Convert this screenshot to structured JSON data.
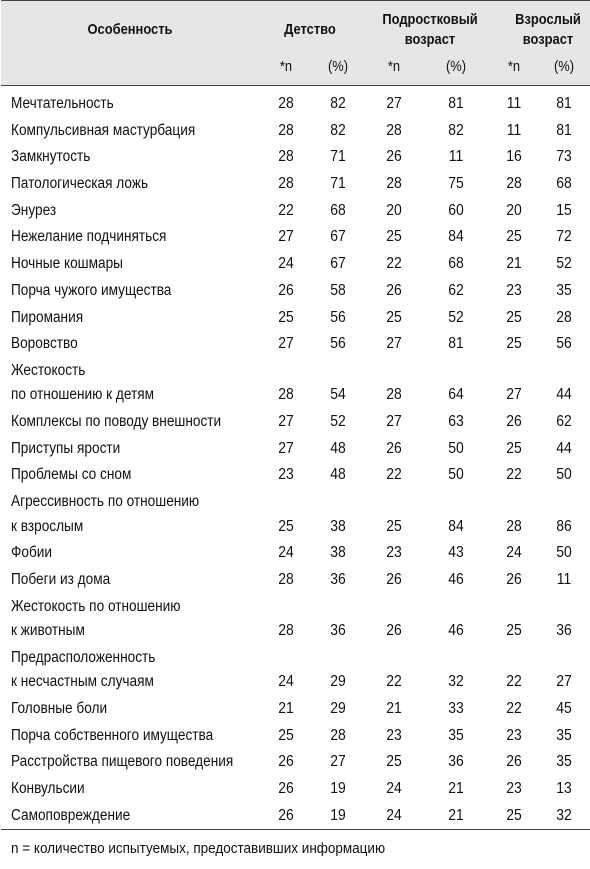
{
  "header": {
    "feature": "Особенность",
    "childhood": "Детство",
    "teen": "Подростковый возраст",
    "adult": "Взрослый возраст",
    "sub_n": "*n",
    "sub_pct": "(%)"
  },
  "rows": [
    {
      "feature": "Мечтательность",
      "values": [
        "28",
        "82",
        "27",
        "81",
        "11",
        "81"
      ]
    },
    {
      "feature": "Компульсивная мастурбация",
      "values": [
        "28",
        "82",
        "28",
        "82",
        "11",
        "81"
      ]
    },
    {
      "feature": "Замкнутость",
      "values": [
        "28",
        "71",
        "26",
        "11",
        "16",
        "73"
      ]
    },
    {
      "feature": "Патологическая ложь",
      "values": [
        "28",
        "71",
        "28",
        "75",
        "28",
        "68"
      ]
    },
    {
      "feature": "Энурез",
      "values": [
        "22",
        "68",
        "20",
        "60",
        "20",
        "15"
      ]
    },
    {
      "feature": "Нежелание подчиняться",
      "values": [
        "27",
        "67",
        "25",
        "84",
        "25",
        "72"
      ]
    },
    {
      "feature": "Ночные кошмары",
      "values": [
        "24",
        "67",
        "22",
        "68",
        "21",
        "52"
      ]
    },
    {
      "feature": "Порча чужого имущества",
      "values": [
        "26",
        "58",
        "26",
        "62",
        "23",
        "35"
      ]
    },
    {
      "feature": "Пиромания",
      "values": [
        "25",
        "56",
        "25",
        "52",
        "25",
        "28"
      ]
    },
    {
      "feature": "Воровство",
      "values": [
        "27",
        "56",
        "27",
        "81",
        "25",
        "56"
      ]
    },
    {
      "feature": "Жестокость\nпо отношению к детям",
      "values": [
        "28",
        "54",
        "28",
        "64",
        "27",
        "44"
      ]
    },
    {
      "feature": "Комплексы по поводу внешности",
      "values": [
        "27",
        "52",
        "27",
        "63",
        "26",
        "62"
      ]
    },
    {
      "feature": "Приступы ярости",
      "values": [
        "27",
        "48",
        "26",
        "50",
        "25",
        "44"
      ]
    },
    {
      "feature": "Проблемы со сном",
      "values": [
        "23",
        "48",
        "22",
        "50",
        "22",
        "50"
      ]
    },
    {
      "feature": "Агрессивность по отношению\nк взрослым",
      "values": [
        "25",
        "38",
        "25",
        "84",
        "28",
        "86"
      ]
    },
    {
      "feature": "Фобии",
      "values": [
        "24",
        "38",
        "23",
        "43",
        "24",
        "50"
      ]
    },
    {
      "feature": "Побеги из дома",
      "values": [
        "28",
        "36",
        "26",
        "46",
        "26",
        "11"
      ]
    },
    {
      "feature": "Жестокость по отношению\nк животным",
      "values": [
        "28",
        "36",
        "26",
        "46",
        "25",
        "36"
      ]
    },
    {
      "feature": "Предрасположенность\nк несчастным случаям",
      "values": [
        "24",
        "29",
        "22",
        "32",
        "22",
        "27"
      ]
    },
    {
      "feature": "Головные боли",
      "values": [
        "21",
        "29",
        "21",
        "33",
        "22",
        "45"
      ]
    },
    {
      "feature": "Порча собственного имущества",
      "values": [
        "25",
        "28",
        "23",
        "35",
        "23",
        "35"
      ]
    },
    {
      "feature": "Расстройства пищевого поведения",
      "values": [
        "26",
        "27",
        "25",
        "36",
        "26",
        "35"
      ]
    },
    {
      "feature": "Конвульсии",
      "values": [
        "26",
        "19",
        "24",
        "21",
        "23",
        "13"
      ]
    },
    {
      "feature": "Самоповреждение",
      "values": [
        "26",
        "19",
        "24",
        "21",
        "25",
        "32"
      ]
    }
  ],
  "footnote": "n = количество испытуемых, предоставивших информацию"
}
